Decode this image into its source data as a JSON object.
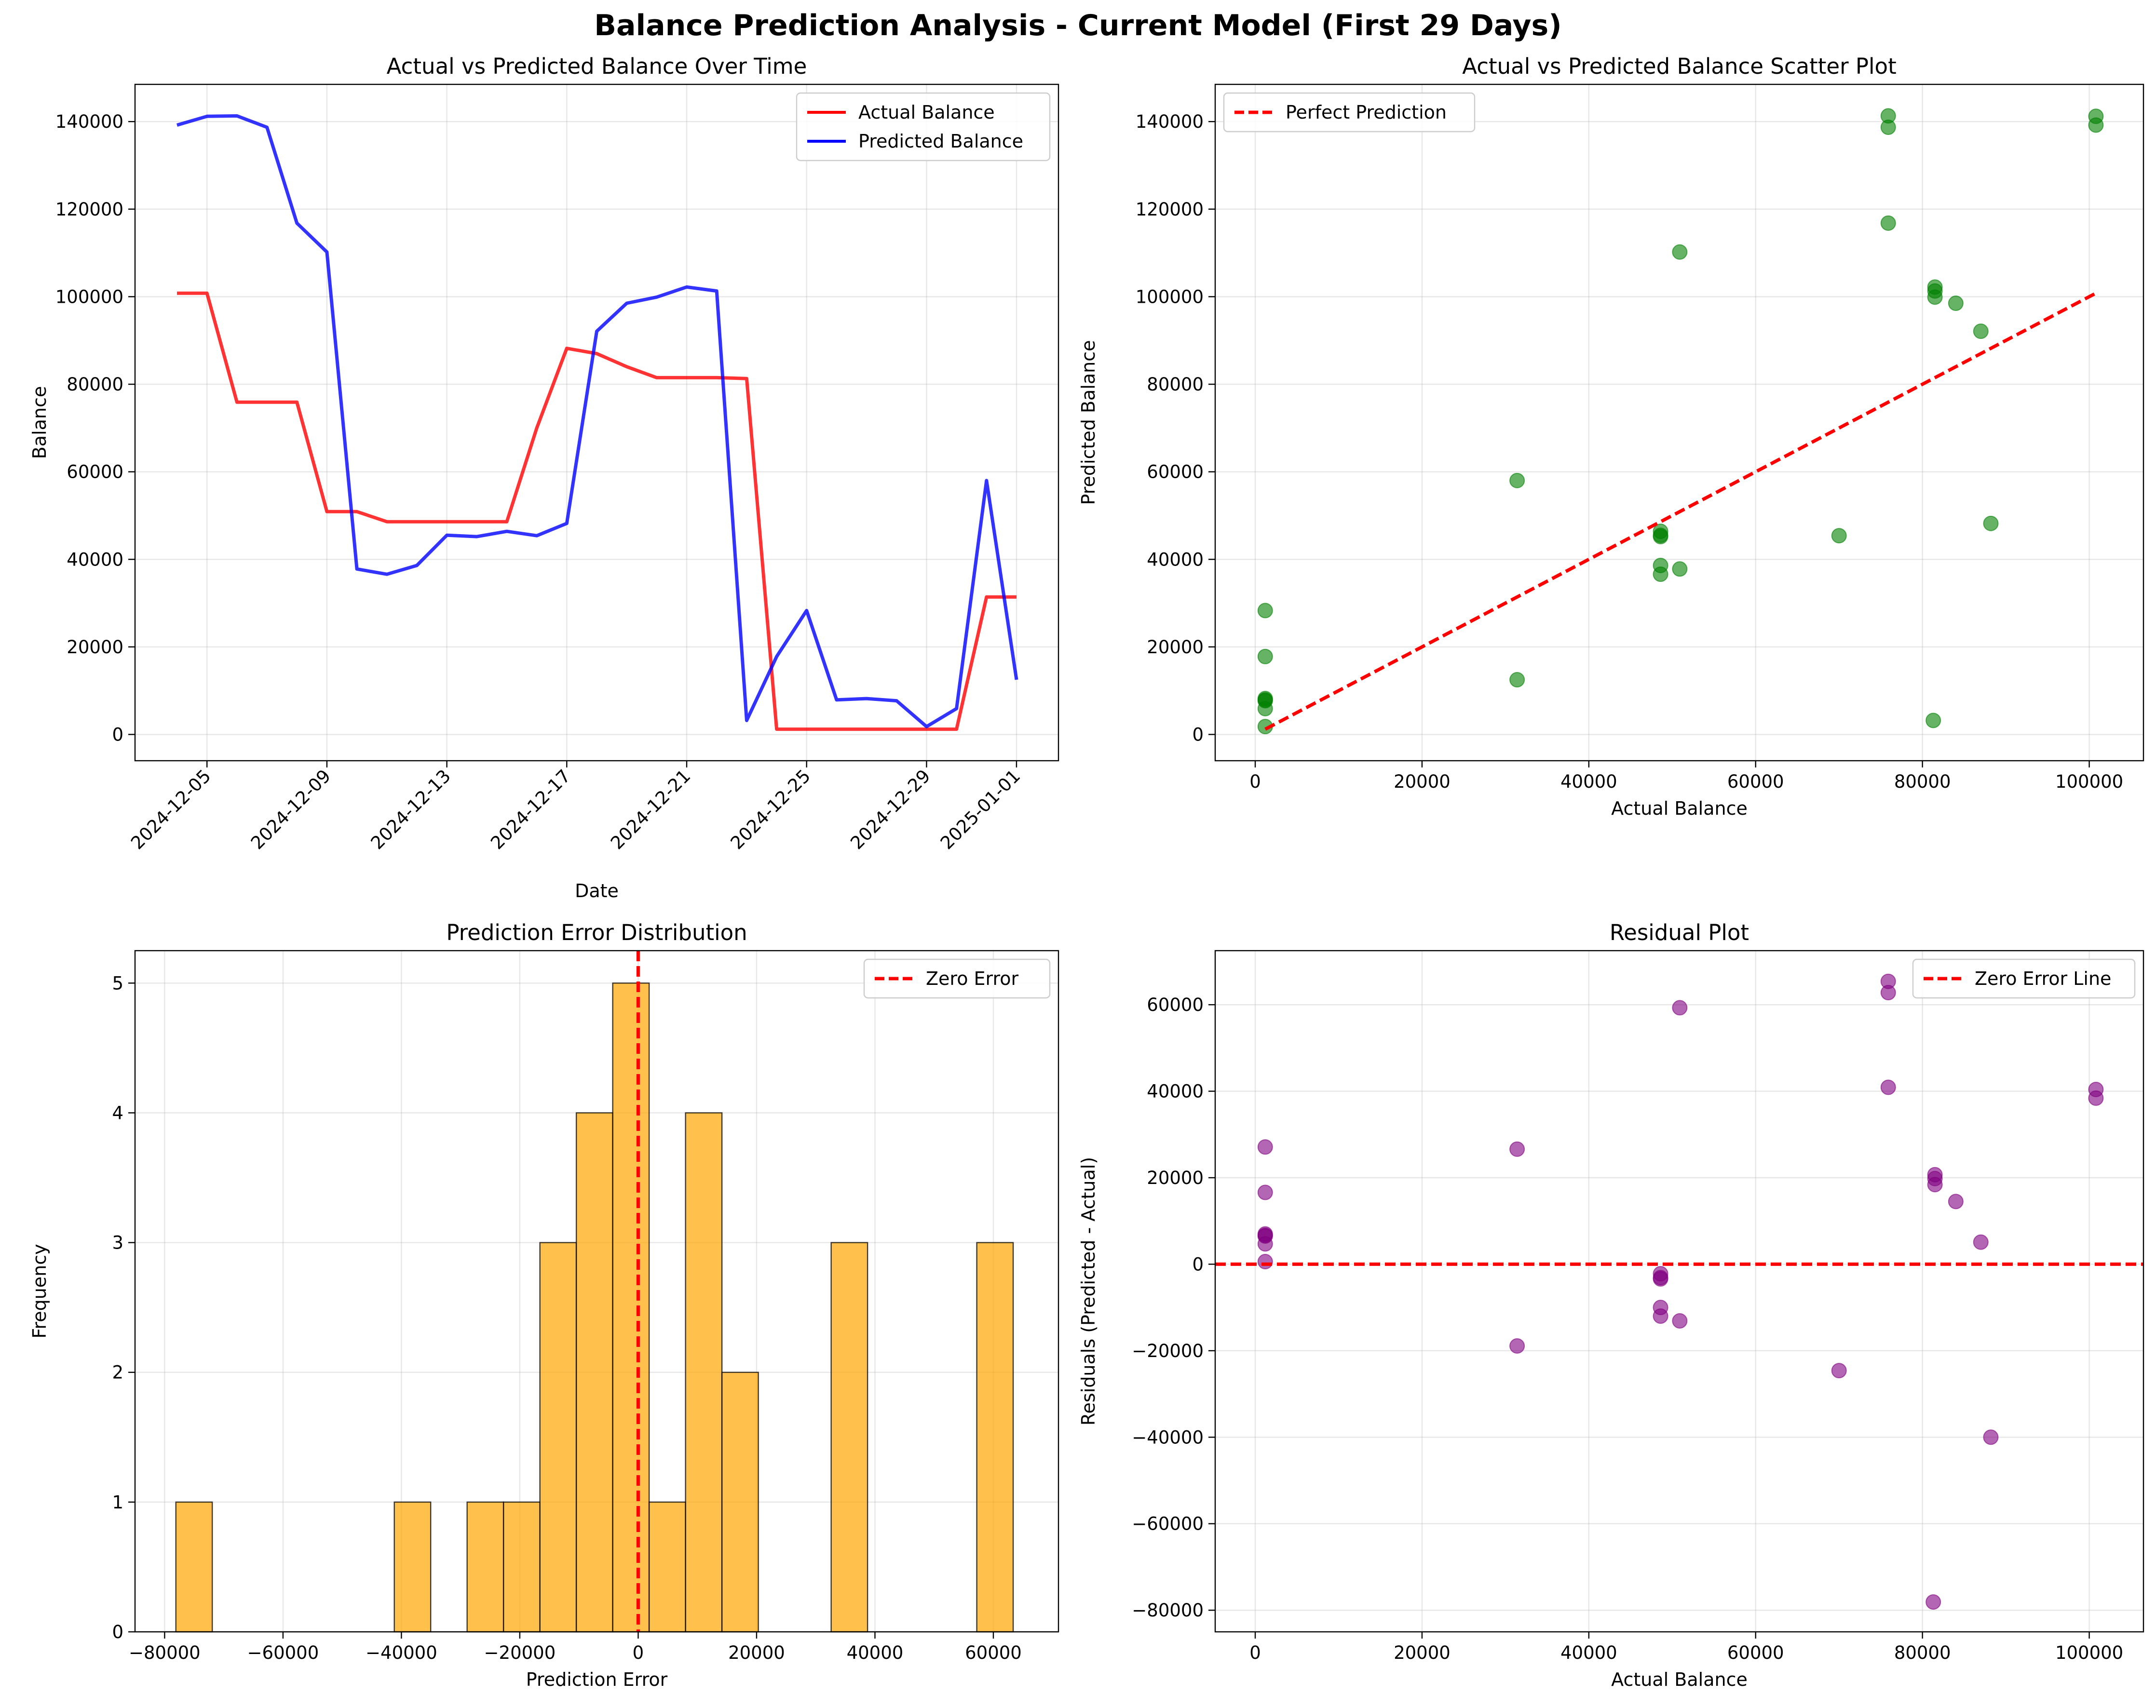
{
  "figure_title": "Balance Prediction Analysis - Current Model (First 29 Days)",
  "colors": {
    "actual": "#ff0000",
    "predicted": "#0000ff",
    "scatter": "#008000",
    "hist": "#ffa500",
    "residual": "#800080",
    "reference": "#ff0000"
  },
  "chart_data": [
    {
      "type": "line",
      "title": "Actual vs Predicted Balance Over Time",
      "xlabel": "Date",
      "ylabel": "Balance",
      "ylim": [
        -6000,
        148500
      ],
      "yticks": [
        0,
        20000,
        40000,
        60000,
        80000,
        100000,
        120000,
        140000
      ],
      "x": [
        "2024-12-04",
        "2024-12-05",
        "2024-12-06",
        "2024-12-07",
        "2024-12-08",
        "2024-12-09",
        "2024-12-10",
        "2024-12-11",
        "2024-12-12",
        "2024-12-13",
        "2024-12-14",
        "2024-12-15",
        "2024-12-16",
        "2024-12-17",
        "2024-12-18",
        "2024-12-19",
        "2024-12-20",
        "2024-12-21",
        "2024-12-22",
        "2024-12-23",
        "2024-12-24",
        "2024-12-25",
        "2024-12-26",
        "2024-12-27",
        "2024-12-28",
        "2024-12-29",
        "2024-12-30",
        "2024-12-31",
        "2025-01-01"
      ],
      "xticks": [
        "2024-12-05",
        "2024-12-09",
        "2024-12-13",
        "2024-12-17",
        "2024-12-21",
        "2024-12-25",
        "2024-12-29",
        "2025-01-01"
      ],
      "series": [
        {
          "name": "Actual Balance",
          "color": "#ff0000",
          "values": [
            100800,
            100800,
            75900,
            75900,
            75900,
            50900,
            50900,
            48600,
            48600,
            48600,
            48600,
            48600,
            70000,
            88200,
            87000,
            84000,
            81500,
            81500,
            81500,
            81300,
            1200,
            1200,
            1200,
            1200,
            1200,
            1200,
            1200,
            31400,
            31400
          ]
        },
        {
          "name": "Predicted Balance",
          "color": "#0000ff",
          "values": [
            139200,
            141200,
            141300,
            138700,
            116800,
            110200,
            37800,
            36600,
            38600,
            45500,
            45200,
            46400,
            45400,
            48200,
            92100,
            98500,
            99900,
            102200,
            101300,
            3200,
            17800,
            28300,
            7900,
            8200,
            7700,
            1800,
            5900,
            58000,
            12500
          ]
        }
      ],
      "legend": "top-right"
    },
    {
      "type": "scatter",
      "title": "Actual vs Predicted Balance Scatter Plot",
      "xlabel": "Actual Balance",
      "ylabel": "Predicted Balance",
      "xlim": [
        -4800,
        106500
      ],
      "ylim": [
        -6000,
        148500
      ],
      "xticks": [
        0,
        20000,
        40000,
        60000,
        80000,
        100000
      ],
      "yticks": [
        0,
        20000,
        40000,
        60000,
        80000,
        100000,
        120000,
        140000
      ],
      "reference_line": {
        "name": "Perfect Prediction",
        "from": [
          1200,
          1200
        ],
        "to": [
          100800,
          100800
        ]
      },
      "points": [
        [
          100800,
          139200
        ],
        [
          100800,
          141200
        ],
        [
          75900,
          141300
        ],
        [
          75900,
          138700
        ],
        [
          75900,
          116800
        ],
        [
          50900,
          110200
        ],
        [
          50900,
          37800
        ],
        [
          48600,
          36600
        ],
        [
          48600,
          38600
        ],
        [
          48600,
          45500
        ],
        [
          48600,
          45200
        ],
        [
          48600,
          46400
        ],
        [
          70000,
          45400
        ],
        [
          88200,
          48200
        ],
        [
          87000,
          92100
        ],
        [
          84000,
          98500
        ],
        [
          81500,
          99900
        ],
        [
          81500,
          102200
        ],
        [
          81500,
          101300
        ],
        [
          81300,
          3200
        ],
        [
          1200,
          17800
        ],
        [
          1200,
          28300
        ],
        [
          1200,
          7900
        ],
        [
          1200,
          8200
        ],
        [
          1200,
          7700
        ],
        [
          1200,
          1800
        ],
        [
          1200,
          5900
        ],
        [
          31400,
          58000
        ],
        [
          31400,
          12500
        ]
      ],
      "legend": "top-left"
    },
    {
      "type": "bar",
      "title": "Prediction Error Distribution",
      "xlabel": "Prediction Error",
      "ylabel": "Frequency",
      "xlim": [
        -85000,
        71000
      ],
      "ylim": [
        0,
        5.25
      ],
      "xticks": [
        -80000,
        -60000,
        -40000,
        -20000,
        0,
        20000,
        40000,
        60000
      ],
      "yticks": [
        0,
        1,
        2,
        3,
        4,
        5
      ],
      "bin_edges": [
        -78100,
        -71950,
        -65800,
        -59650,
        -53500,
        -47350,
        -41200,
        -35050,
        -28900,
        -22750,
        -16600,
        -10450,
        -4300,
        1850,
        8000,
        14150,
        20300,
        26450,
        32600,
        38750,
        44900,
        51050,
        57200,
        63350
      ],
      "counts": [
        1,
        0,
        0,
        0,
        0,
        0,
        1,
        0,
        1,
        1,
        3,
        4,
        5,
        1,
        4,
        2,
        0,
        0,
        3,
        0,
        0,
        0,
        3
      ],
      "reference_line": {
        "name": "Zero Error",
        "x": 0
      },
      "legend": "top-right"
    },
    {
      "type": "scatter",
      "title": "Residual Plot",
      "xlabel": "Actual Balance",
      "ylabel": "Residuals (Predicted - Actual)",
      "xlim": [
        -4800,
        106500
      ],
      "ylim": [
        -85000,
        72500
      ],
      "xticks": [
        0,
        20000,
        40000,
        60000,
        80000,
        100000
      ],
      "yticks": [
        -80000,
        -60000,
        -40000,
        -20000,
        0,
        20000,
        40000,
        60000
      ],
      "reference_line": {
        "name": "Zero Error Line",
        "y": 0
      },
      "points": [
        [
          100800,
          38400
        ],
        [
          100800,
          40400
        ],
        [
          75900,
          65400
        ],
        [
          75900,
          62800
        ],
        [
          75900,
          40900
        ],
        [
          50900,
          59300
        ],
        [
          50900,
          -13100
        ],
        [
          48600,
          -12000
        ],
        [
          48600,
          -10000
        ],
        [
          48600,
          -3100
        ],
        [
          48600,
          -3400
        ],
        [
          48600,
          -2200
        ],
        [
          70000,
          -24600
        ],
        [
          88200,
          -40000
        ],
        [
          87000,
          5100
        ],
        [
          84000,
          14500
        ],
        [
          81500,
          18400
        ],
        [
          81500,
          20700
        ],
        [
          81500,
          19800
        ],
        [
          81300,
          -78100
        ],
        [
          1200,
          16600
        ],
        [
          1200,
          27100
        ],
        [
          1200,
          6700
        ],
        [
          1200,
          7000
        ],
        [
          1200,
          6500
        ],
        [
          1200,
          600
        ],
        [
          1200,
          4700
        ],
        [
          31400,
          26600
        ],
        [
          31400,
          -18900
        ]
      ],
      "legend": "top-right"
    }
  ]
}
